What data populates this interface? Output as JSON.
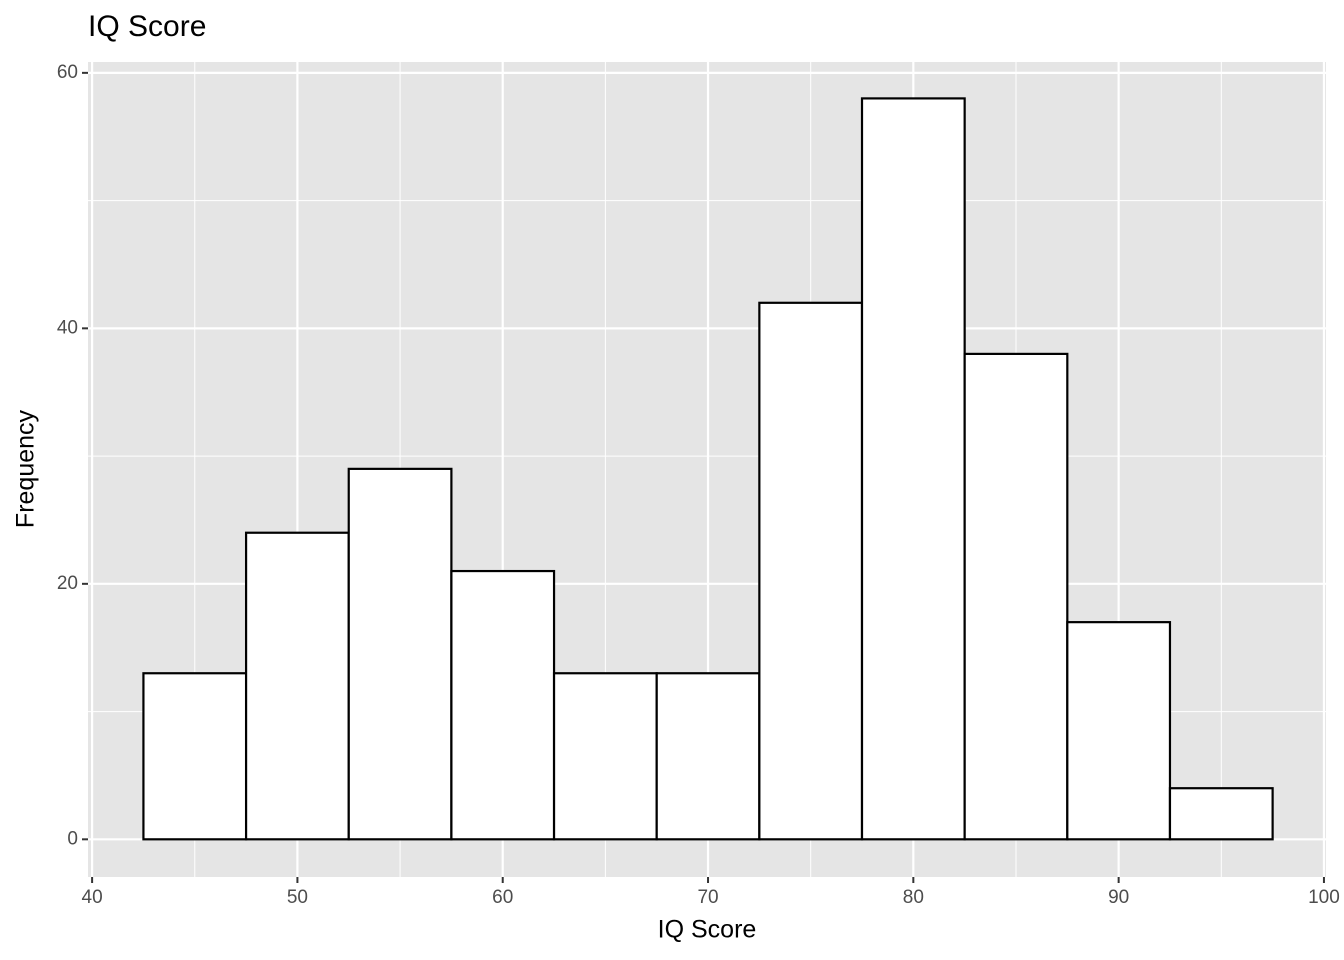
{
  "chart_data": {
    "type": "histogram",
    "title": "IQ Score",
    "x_label": "IQ Score",
    "y_label": "Frequency",
    "bins": [
      42.5,
      47.5,
      52.5,
      57.5,
      62.5,
      67.5,
      72.5,
      77.5,
      82.5,
      87.5,
      92.5,
      97.5
    ],
    "values": [
      13,
      24,
      29,
      21,
      13,
      13,
      42,
      58,
      38,
      17,
      4
    ],
    "color": "#ffffff",
    "edge_color": "#000000",
    "xlim": [
      39.8,
      100.1
    ],
    "xticks": [
      40,
      50,
      60,
      70,
      80,
      90,
      100
    ],
    "ylim": [
      -2.95,
      60.85
    ],
    "yticks": [
      0,
      20,
      40,
      60
    ],
    "grid": true
  }
}
